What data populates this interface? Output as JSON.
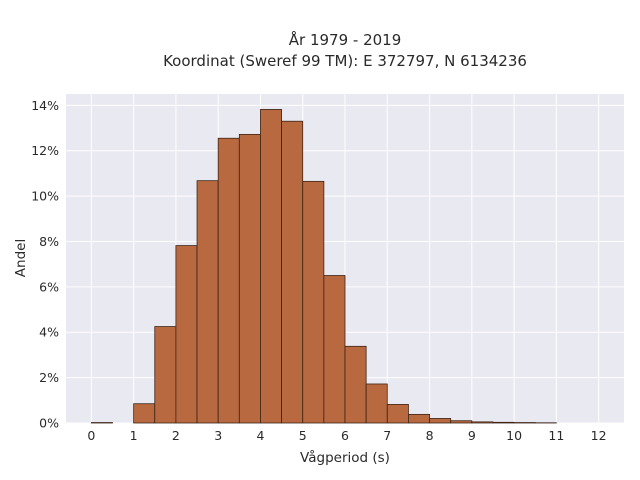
{
  "chart_data": {
    "type": "bar",
    "title_line1": "År 1979 - 2019",
    "title_line2": "Koordinat (Sweref 99 TM): E 372797, N 6134236",
    "xlabel": "Vågperiod (s)",
    "ylabel": "Andel",
    "xlim": [
      -0.6,
      12.6
    ],
    "ylim": [
      0,
      14.5
    ],
    "x_ticks": [
      "0",
      "1",
      "2",
      "3",
      "4",
      "5",
      "6",
      "7",
      "8",
      "9",
      "10",
      "11",
      "12"
    ],
    "y_ticks": [
      "0%",
      "2%",
      "4%",
      "6%",
      "8%",
      "10%",
      "12%",
      "14%"
    ],
    "bin_width": 0.5,
    "bins": [
      {
        "x0": 0.0,
        "value": 0.02
      },
      {
        "x0": 0.5,
        "value": 0.0
      },
      {
        "x0": 1.0,
        "value": 0.85
      },
      {
        "x0": 1.5,
        "value": 4.25
      },
      {
        "x0": 2.0,
        "value": 7.82
      },
      {
        "x0": 2.5,
        "value": 10.68
      },
      {
        "x0": 3.0,
        "value": 12.55
      },
      {
        "x0": 3.5,
        "value": 12.72
      },
      {
        "x0": 4.0,
        "value": 13.82
      },
      {
        "x0": 4.5,
        "value": 13.3
      },
      {
        "x0": 5.0,
        "value": 10.65
      },
      {
        "x0": 5.5,
        "value": 6.5
      },
      {
        "x0": 6.0,
        "value": 3.38
      },
      {
        "x0": 6.5,
        "value": 1.72
      },
      {
        "x0": 7.0,
        "value": 0.82
      },
      {
        "x0": 7.5,
        "value": 0.38
      },
      {
        "x0": 8.0,
        "value": 0.2
      },
      {
        "x0": 8.5,
        "value": 0.1
      },
      {
        "x0": 9.0,
        "value": 0.05
      },
      {
        "x0": 9.5,
        "value": 0.03
      },
      {
        "x0": 10.0,
        "value": 0.02
      },
      {
        "x0": 10.5,
        "value": 0.01
      },
      {
        "x0": 11.0,
        "value": 0.0
      },
      {
        "x0": 11.5,
        "value": 0.0
      }
    ],
    "bar_color": "#b8693f",
    "bar_edge_color": "#3d2417",
    "plot_bg_color": "#e9e9f1",
    "grid": true,
    "legend": false
  }
}
